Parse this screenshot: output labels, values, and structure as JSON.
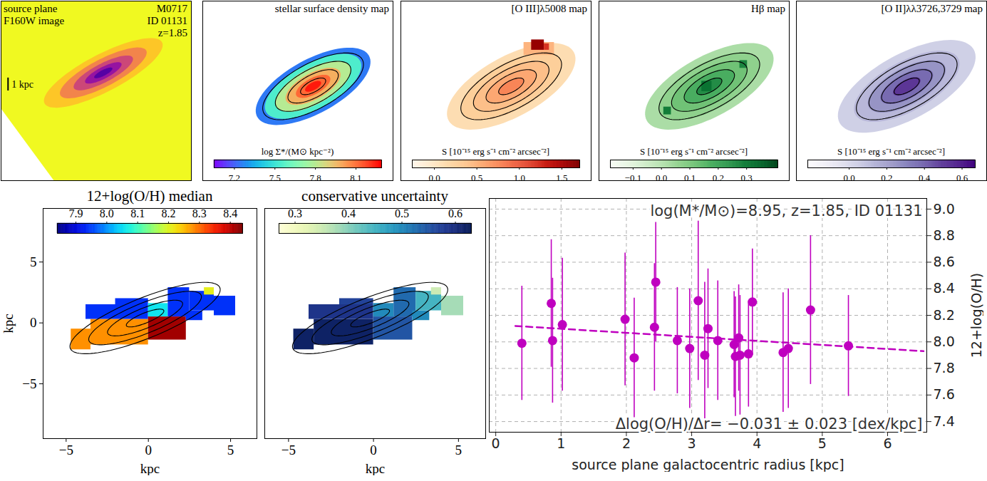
{
  "chart_data": [
    {
      "type": "image",
      "annotations_left": [
        "source plane",
        "F160W image"
      ],
      "annotations_right": [
        "M0717",
        "ID 01131",
        "z=1.85"
      ],
      "color": "plasma_r",
      "color_range": [
        0,
        1
      ],
      "background": 0,
      "rings": {
        "center": [
          -0.64,
          1.04
        ],
        "angle": 27,
        "axis_ratio": 0.28,
        "a": [
          5.2,
          3.8,
          2.6,
          1.6,
          0.8
        ],
        "values": [
          0.12,
          0.3,
          0.5,
          0.68,
          0.85
        ]
      },
      "no_data": [
        [
          -8.7,
          -1.73
        ],
        [
          -4.53,
          -7.3
        ],
        [
          -8.7,
          -7.3
        ]
      ],
      "scale_bar": {
        "length": 1,
        "label": "1 kpc"
      },
      "xlim": [
        -8.7,
        6.3
      ],
      "ylim": [
        -7.3,
        6.6
      ],
      "tick_labels": false
    },
    {
      "type": "heatmap",
      "title": "stellar surface density map",
      "color": "rainbow",
      "colorbar": {
        "range": [
          7.05,
          8.29
        ],
        "ticks": [
          7.2,
          7.5,
          7.8,
          8.1
        ],
        "label": "log Σ*/(M⊙ kpc⁻²)"
      },
      "rings": {
        "center": [
          0,
          0
        ],
        "angle": 28,
        "axis_ratio": 0.42,
        "a": [
          5.0,
          4.2,
          3.3,
          2.4,
          1.5,
          0.7
        ],
        "values": [
          7.25,
          7.55,
          7.8,
          7.98,
          8.12,
          8.25
        ]
      },
      "contours": {
        "center": [
          0,
          0
        ],
        "angle": 28,
        "axis_ratio": 0.4,
        "a": [
          1.1,
          2.2,
          3.3,
          4.4
        ]
      },
      "xlim": [
        -8.7,
        6.3
      ],
      "ylim": [
        -7.3,
        6.6
      ],
      "tick_labels": false
    },
    {
      "type": "heatmap",
      "title": "[O III]λ5008 map",
      "color": "OrRd",
      "colorbar": {
        "range": [
          -0.26,
          1.71
        ],
        "ticks": [
          {
            "value": 0,
            "label": "0.0"
          },
          0.5,
          {
            "value": 1,
            "label": "1.0"
          },
          1.5
        ],
        "label": "S [10⁻¹⁵ erg s⁻¹ cm⁻² arcsec⁻²]"
      },
      "rings": {
        "center": [
          0,
          0
        ],
        "angle": 28,
        "axis_ratio": 0.42,
        "a": [
          5.6,
          4.4,
          3.3,
          2.2,
          1.1
        ],
        "values": [
          0.12,
          0.28,
          0.42,
          0.58,
          0.78
        ]
      },
      "cells": [
        {
          "x1": 1.0,
          "x2": 3.4,
          "y1": 2.4,
          "y2": 3.4,
          "value": 0.5
        },
        {
          "x1": 1.6,
          "x2": 2.6,
          "y1": 2.8,
          "y2": 3.6,
          "value": 1.6
        },
        {
          "x1": 2.6,
          "x2": 3.0,
          "y1": 2.8,
          "y2": 3.3,
          "value": 1.2
        }
      ],
      "contours": {
        "center": [
          0,
          0
        ],
        "angle": 28,
        "axis_ratio": 0.4,
        "a": [
          1.1,
          2.2,
          3.3,
          4.4
        ]
      },
      "xlim": [
        -8.7,
        6.3
      ],
      "ylim": [
        -7.3,
        6.6
      ],
      "tick_labels": false
    },
    {
      "type": "heatmap",
      "title": "Hβ map",
      "color": "Greens",
      "colorbar": {
        "range": [
          -0.18,
          0.41
        ],
        "ticks": [
          {
            "value": -0.1,
            "label": "−0.1"
          },
          {
            "value": 0,
            "label": "0.0"
          },
          0.1,
          0.2,
          0.3
        ],
        "label": "S [10⁻¹⁵ erg s⁻¹ cm⁻² arcsec⁻²]"
      },
      "rings": {
        "center": [
          0,
          0
        ],
        "angle": 28,
        "axis_ratio": 0.42,
        "a": [
          5.6,
          4.4,
          3.3,
          2.2,
          1.1
        ],
        "values": [
          0.02,
          0.07,
          0.12,
          0.18,
          0.26
        ]
      },
      "cells": [
        {
          "x1": -0.6,
          "x2": 0.2,
          "y1": -0.4,
          "y2": 0.4,
          "value": 0.32
        },
        {
          "x1": 2.4,
          "x2": 3.0,
          "y1": 1.4,
          "y2": 2.0,
          "value": 0.28
        },
        {
          "x1": -3.6,
          "x2": -3.0,
          "y1": -2.2,
          "y2": -1.6,
          "value": 0.3
        }
      ],
      "contours": {
        "center": [
          0,
          0
        ],
        "angle": 28,
        "axis_ratio": 0.4,
        "a": [
          1.1,
          2.2,
          3.3,
          4.4
        ]
      },
      "xlim": [
        -8.7,
        6.3
      ],
      "ylim": [
        -7.3,
        6.6
      ],
      "tick_labels": false
    },
    {
      "type": "heatmap",
      "title": "[O II]λλ3726,3729 map",
      "color": "Purples",
      "colorbar": {
        "range": [
          -0.22,
          0.67
        ],
        "ticks": [
          {
            "value": 0,
            "label": "0.0"
          },
          0.2,
          0.4,
          0.6
        ],
        "label": "S [10⁻¹⁵ erg s⁻¹ cm⁻² arcsec⁻²]"
      },
      "rings": {
        "center": [
          0,
          0
        ],
        "angle": 28,
        "axis_ratio": 0.42,
        "a": [
          6.0,
          4.6,
          3.4,
          2.3,
          1.2
        ],
        "values": [
          0.04,
          0.13,
          0.25,
          0.38,
          0.52
        ]
      },
      "contours": {
        "center": [
          0,
          0
        ],
        "angle": 28,
        "axis_ratio": 0.4,
        "a": [
          1.1,
          2.2,
          3.3,
          4.4
        ]
      },
      "xlim": [
        -8.7,
        6.3
      ],
      "ylim": [
        -7.3,
        6.6
      ],
      "tick_labels": false
    },
    {
      "type": "heatmap",
      "title": "12+log(O/H) median",
      "color": "jet",
      "colorbar": {
        "range": [
          7.84,
          8.44
        ],
        "ticks": [
          7.9,
          {
            "value": 8,
            "label": "8.0"
          },
          8.1,
          8.2,
          8.3,
          8.4
        ]
      },
      "cells": [
        {
          "x1": -4.7,
          "x2": -3.5,
          "y1": -2.2,
          "y2": -0.5,
          "value": 8.28
        },
        {
          "x1": -3.5,
          "x2": 0,
          "y1": -1.8,
          "y2": 0.3,
          "value": 8.28
        },
        {
          "x1": -3.8,
          "x2": 0,
          "y1": 0.3,
          "y2": 1.5,
          "value": 7.94
        },
        {
          "x1": -2.0,
          "x2": 0,
          "y1": 1.5,
          "y2": 2.0,
          "value": 7.94
        },
        {
          "x1": 0,
          "x2": 2.3,
          "y1": -1.4,
          "y2": 0.5,
          "value": 8.42
        },
        {
          "x1": 0,
          "x2": 1.2,
          "y1": 0.5,
          "y2": 1.6,
          "value": 8.06
        },
        {
          "x1": 1.2,
          "x2": 2.5,
          "y1": 0.5,
          "y2": 2.9,
          "value": 7.94
        },
        {
          "x1": 2.3,
          "x2": 3.3,
          "y1": 0.2,
          "y2": 1.0,
          "value": 7.94
        },
        {
          "x1": 2.5,
          "x2": 4.0,
          "y1": 1.0,
          "y2": 2.6,
          "value": 7.94
        },
        {
          "x1": 3.4,
          "x2": 4.0,
          "y1": 2.3,
          "y2": 2.9,
          "value": 8.21
        },
        {
          "x1": 4.0,
          "x2": 5.3,
          "y1": 0.6,
          "y2": 2.2,
          "value": 7.94
        }
      ],
      "contours": {
        "center": [
          -0.2,
          0.4
        ],
        "angle": 30,
        "axis_ratio": 0.3,
        "a": [
          1.3,
          2.6,
          3.9,
          5.2
        ]
      },
      "xlim": [
        -6.4,
        6.6
      ],
      "ylim": [
        -9.5,
        9.4
      ],
      "xticks": [
        {
          "value": -5,
          "label": "−5"
        },
        0,
        5
      ],
      "yticks": [
        {
          "value": -5,
          "label": "−5"
        },
        0,
        5
      ],
      "xlabel": "kpc",
      "ylabel": "kpc"
    },
    {
      "type": "heatmap",
      "title": "conservative uncertainty",
      "color": "YlGnBu",
      "colorbar": {
        "range": [
          0.27,
          0.63
        ],
        "ticks": [
          0.3,
          0.4,
          0.5,
          0.6
        ]
      },
      "cells": [
        {
          "x1": -4.7,
          "x2": -3.5,
          "y1": -2.2,
          "y2": -0.5,
          "value": 0.62
        },
        {
          "x1": -3.5,
          "x2": 0,
          "y1": -1.8,
          "y2": 0.3,
          "value": 0.62
        },
        {
          "x1": -3.8,
          "x2": 0,
          "y1": 0.3,
          "y2": 1.5,
          "value": 0.59
        },
        {
          "x1": -2.0,
          "x2": 0,
          "y1": 1.5,
          "y2": 2.0,
          "value": 0.57
        },
        {
          "x1": 0,
          "x2": 2.3,
          "y1": -1.4,
          "y2": 0.5,
          "value": 0.55
        },
        {
          "x1": 0,
          "x2": 1.2,
          "y1": 0.5,
          "y2": 1.6,
          "value": 0.5
        },
        {
          "x1": 1.2,
          "x2": 2.5,
          "y1": 0.5,
          "y2": 2.9,
          "value": 0.53
        },
        {
          "x1": 2.3,
          "x2": 3.3,
          "y1": 0.2,
          "y2": 1.0,
          "value": 0.5
        },
        {
          "x1": 2.5,
          "x2": 4.0,
          "y1": 1.0,
          "y2": 2.6,
          "value": 0.45
        },
        {
          "x1": 3.4,
          "x2": 4.0,
          "y1": 2.3,
          "y2": 2.9,
          "value": 0.35
        },
        {
          "x1": 4.0,
          "x2": 5.3,
          "y1": 0.6,
          "y2": 2.2,
          "value": 0.38
        }
      ],
      "contours": {
        "center": [
          -0.2,
          0.4
        ],
        "angle": 30,
        "axis_ratio": 0.3,
        "a": [
          1.3,
          2.6,
          3.9,
          5.2
        ]
      },
      "xlim": [
        -6.4,
        6.6
      ],
      "ylim": [
        -9.5,
        9.4
      ],
      "xticks": [
        {
          "value": -5,
          "label": "−5"
        },
        0,
        5
      ],
      "xlabel": "kpc",
      "tick_labels": "x"
    },
    {
      "type": "scatter",
      "color": "#bf00bf",
      "marker": "circle",
      "x": [
        0.4,
        0.85,
        0.87,
        1.02,
        1.98,
        2.12,
        2.43,
        2.45,
        2.78,
        2.97,
        3.1,
        3.2,
        3.25,
        3.4,
        3.65,
        3.67,
        3.72,
        3.74,
        3.87,
        3.93,
        4.4,
        4.48,
        4.82,
        5.4
      ],
      "values": [
        7.99,
        8.29,
        8.01,
        8.13,
        8.17,
        7.88,
        8.11,
        8.45,
        8.01,
        7.95,
        8.31,
        7.9,
        8.1,
        8.01,
        7.98,
        7.89,
        8.03,
        7.9,
        7.91,
        8.3,
        7.92,
        7.95,
        8.24,
        7.97
      ],
      "yerr": [
        0.43,
        0.48,
        0.47,
        0.5,
        0.5,
        0.45,
        0.48,
        0.45,
        0.4,
        0.45,
        0.6,
        0.55,
        0.45,
        0.45,
        0.4,
        0.45,
        0.4,
        0.45,
        0.4,
        0.4,
        0.45,
        0.45,
        0.56,
        0.38
      ],
      "fit": {
        "type": "line",
        "x": [
          0.3,
          6.55
        ],
        "values": [
          8.12,
          7.93
        ],
        "color": "#bf00bf",
        "line_style": "dashed"
      },
      "annotations": [
        "log(M*/M⊙)=8.95, z=1.85, ID 01131",
        "Δlog(O/H)/Δr= −0.031 ± 0.023 [dex/kpc]"
      ],
      "xlim": [
        -0.1,
        6.6
      ],
      "ylim": [
        7.32,
        9.08
      ],
      "xticks": [
        0,
        1,
        2,
        3,
        4,
        5,
        6
      ],
      "yticks": [
        7.4,
        7.6,
        7.8,
        {
          "value": 8,
          "label": "8.0"
        },
        8.2,
        8.4,
        8.6,
        8.8,
        {
          "value": 9,
          "label": "9.0"
        }
      ],
      "xlabel": "source plane galactocentric radius [kpc]",
      "ylabel": "12+log(O/H)",
      "grid": true
    }
  ]
}
